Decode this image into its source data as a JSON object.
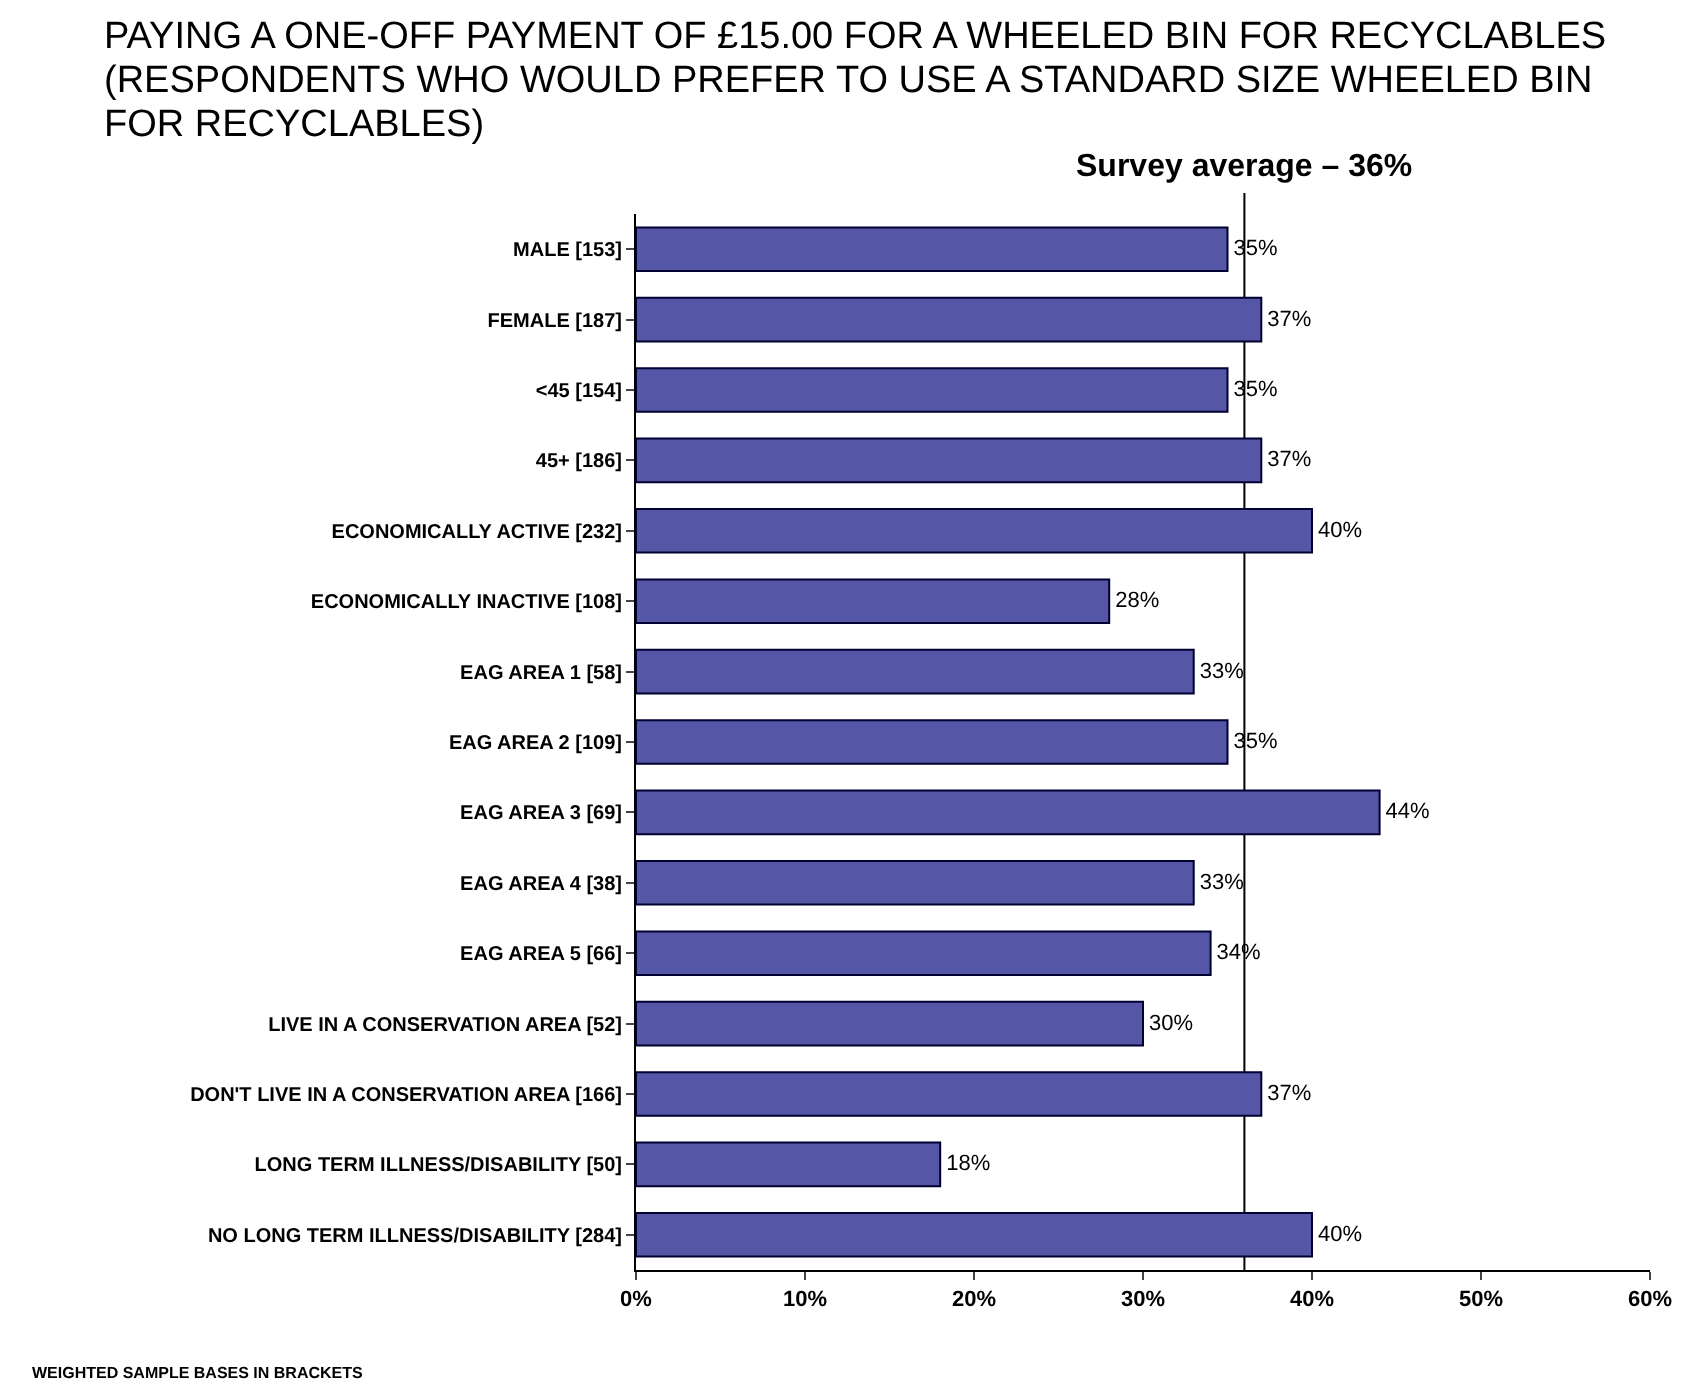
{
  "chart_data": {
    "type": "bar",
    "orientation": "horizontal",
    "title": "PAYING A ONE-OFF PAYMENT OF £15.00 FOR A WHEELED BIN FOR RECYCLABLES (RESPONDENTS WHO WOULD PREFER TO USE A STANDARD SIZE WHEELED BIN FOR RECYCLABLES)",
    "categories": [
      "MALE [153]",
      "FEMALE [187]",
      "<45 [154]",
      "45+ [186]",
      "ECONOMICALLY ACTIVE [232]",
      "ECONOMICALLY INACTIVE [108]",
      "EAG AREA 1 [58]",
      "EAG AREA 2 [109]",
      "EAG AREA 3 [69]",
      "EAG AREA 4 [38]",
      "EAG AREA 5 [66]",
      "LIVE IN A CONSERVATION AREA [52]",
      "DON'T LIVE IN A CONSERVATION AREA [166]",
      "LONG TERM ILLNESS/DISABILITY [50]",
      "NO LONG TERM ILLNESS/DISABILITY [284]"
    ],
    "values": [
      35,
      37,
      35,
      37,
      40,
      28,
      33,
      35,
      44,
      33,
      34,
      30,
      37,
      18,
      40
    ],
    "value_labels": [
      "35%",
      "37%",
      "35%",
      "37%",
      "40%",
      "28%",
      "33%",
      "35%",
      "44%",
      "33%",
      "34%",
      "30%",
      "37%",
      "18%",
      "40%"
    ],
    "color": "#5656a6",
    "xlim": [
      0,
      60
    ],
    "xticks": [
      {
        "value": 0,
        "label": "0%"
      },
      {
        "value": 10,
        "label": "10%"
      },
      {
        "value": 20,
        "label": "20%"
      },
      {
        "value": 30,
        "label": "30%"
      },
      {
        "value": 40,
        "label": "40%"
      },
      {
        "value": 50,
        "label": "50%"
      },
      {
        "value": 60,
        "label": "60%"
      }
    ],
    "ref_lines": [
      {
        "axis": "x",
        "value": 36,
        "label": "Survey average – 36%",
        "color": "#000000"
      }
    ],
    "annotations": [
      "WEIGHTED SAMPLE BASES IN BRACKETS"
    ],
    "grid": false,
    "legend": false
  }
}
